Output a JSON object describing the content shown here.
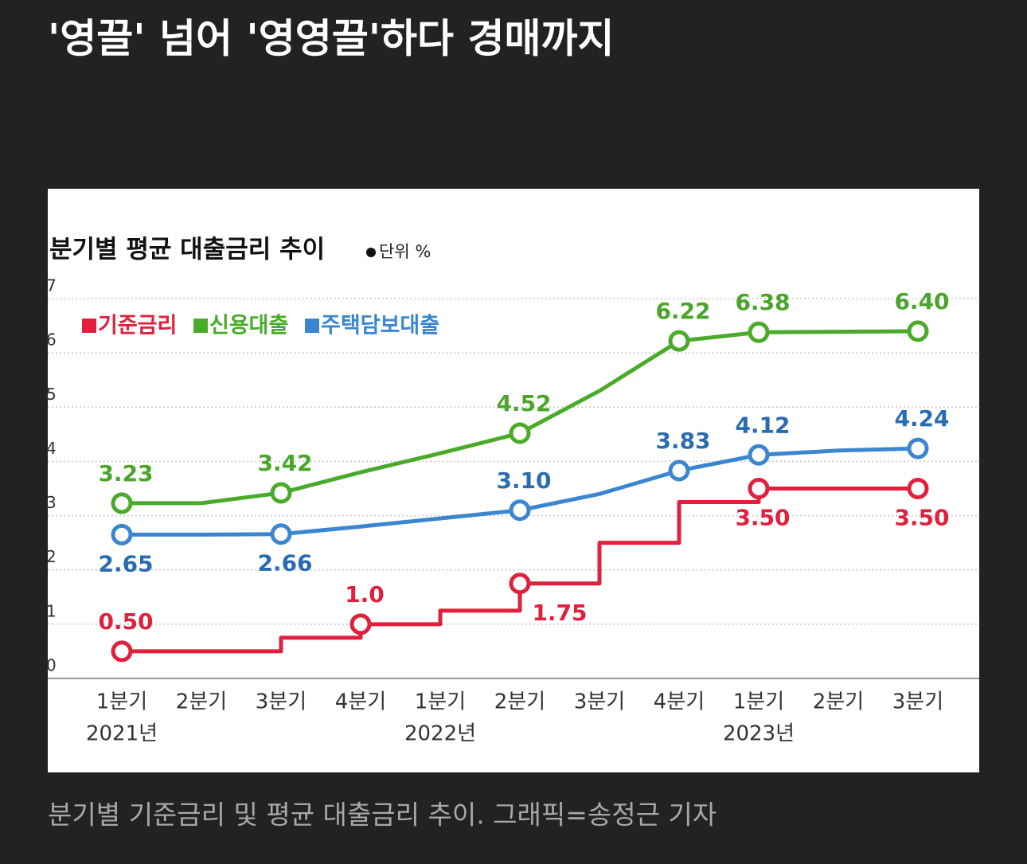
{
  "page": {
    "headline": "'영끌' 넘어 '영영끌'하다 경매까지",
    "caption": "분기별 기준금리 및 평균 대출금리 추이. 그래픽=송정근 기자"
  },
  "chart_data": {
    "type": "line",
    "title": "분기별 평균 대출금리 추이",
    "unit": "단위 %",
    "categories": [
      "1분기",
      "2분기",
      "3분기",
      "4분기",
      "1분기",
      "2분기",
      "3분기",
      "4분기",
      "1분기",
      "2분기",
      "3분기"
    ],
    "category_groups": [
      {
        "label": "2021년",
        "start": 0
      },
      {
        "label": "2022년",
        "start": 4
      },
      {
        "label": "2023년",
        "start": 8
      }
    ],
    "series": [
      {
        "name": "기준금리",
        "color": "#e0203c",
        "style": "step",
        "values": [
          0.5,
          0.5,
          0.75,
          1.0,
          1.25,
          1.75,
          2.5,
          3.25,
          3.5,
          3.5,
          3.5
        ],
        "value_labels": [
          "0.50",
          null,
          null,
          "1.0",
          null,
          "1.75",
          null,
          null,
          "3.50",
          null,
          "3.50"
        ]
      },
      {
        "name": "신용대출",
        "color": "#4aab2a",
        "style": "line",
        "values": [
          3.23,
          3.23,
          3.42,
          3.8,
          4.15,
          4.52,
          5.3,
          6.22,
          6.38,
          6.39,
          6.4
        ],
        "value_labels": [
          "3.23",
          null,
          "3.42",
          null,
          null,
          "4.52",
          null,
          "6.22",
          "6.38",
          null,
          "6.40"
        ]
      },
      {
        "name": "주택담보대출",
        "color": "#3b86d0",
        "style": "line",
        "values": [
          2.65,
          2.65,
          2.66,
          2.8,
          2.95,
          3.1,
          3.4,
          3.83,
          4.12,
          4.2,
          4.24
        ],
        "value_labels": [
          "2.65",
          null,
          "2.66",
          null,
          null,
          "3.10",
          null,
          "3.83",
          "4.12",
          null,
          "4.24"
        ]
      }
    ],
    "ylim": [
      0,
      7
    ],
    "yticks": [
      0,
      1,
      2,
      3,
      4,
      5,
      6,
      7
    ],
    "grid": true
  }
}
